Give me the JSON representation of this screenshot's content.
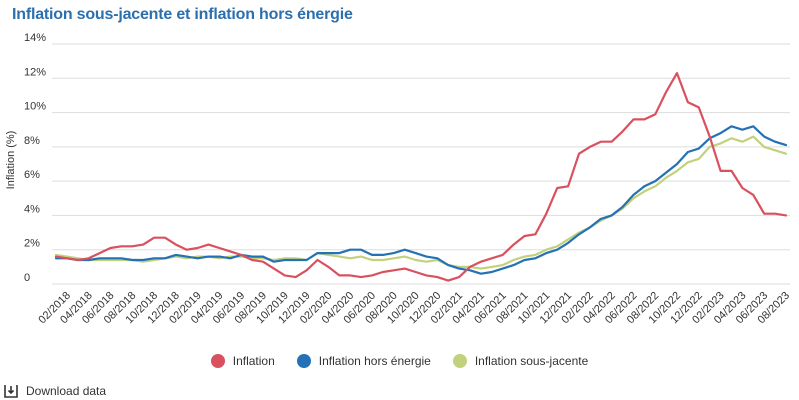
{
  "title": "Inflation sous-jacente et inflation hors énergie",
  "download_label": "Download data",
  "download_icon": "download-icon",
  "colors": {
    "inflation": "#d9515e",
    "hors_energie": "#2471b5",
    "sous_jacente": "#c2d17c",
    "grid": "#dddddd"
  },
  "chart_data": {
    "type": "line",
    "title": "Inflation sous-jacente et inflation hors énergie",
    "ylabel": "Inflation (%)",
    "ylim": [
      0,
      14
    ],
    "yticks": [
      0,
      2,
      4,
      6,
      8,
      10,
      12,
      14
    ],
    "ytick_labels": [
      "0",
      "2%",
      "4%",
      "6%",
      "8%",
      "10%",
      "12%",
      "14%"
    ],
    "grid": true,
    "legend_position": "bottom",
    "xtick_labels": [
      "02/2018",
      "04/2018",
      "06/2018",
      "08/2018",
      "10/2018",
      "12/2018",
      "02/2019",
      "04/2019",
      "06/2019",
      "08/2019",
      "10/2019",
      "12/2019",
      "02/2020",
      "04/2020",
      "06/2020",
      "08/2020",
      "10/2020",
      "12/2020",
      "02/2021",
      "04/2021",
      "06/2021",
      "08/2021",
      "10/2021",
      "12/2021",
      "02/2022",
      "04/2022",
      "06/2022",
      "08/2022",
      "10/2022",
      "12/2022",
      "02/2023",
      "04/2023",
      "06/2023",
      "08/2023"
    ],
    "x_start": "01/2018",
    "series": [
      {
        "name": "Inflation",
        "color": "#d9515e",
        "values": [
          1.6,
          1.5,
          1.4,
          1.5,
          1.8,
          2.1,
          2.2,
          2.2,
          2.3,
          2.7,
          2.7,
          2.3,
          2.0,
          2.1,
          2.3,
          2.1,
          1.9,
          1.7,
          1.4,
          1.3,
          0.9,
          0.5,
          0.4,
          0.8,
          1.4,
          1.0,
          0.5,
          0.5,
          0.4,
          0.5,
          0.7,
          0.8,
          0.9,
          0.7,
          0.5,
          0.4,
          0.2,
          0.4,
          1.0,
          1.3,
          1.5,
          1.7,
          2.3,
          2.8,
          2.9,
          4.1,
          5.6,
          5.7,
          7.6,
          8.0,
          8.3,
          8.3,
          8.9,
          9.6,
          9.6,
          9.9,
          11.2,
          12.3,
          10.6,
          10.3,
          8.6,
          6.6,
          6.6,
          5.6,
          5.2,
          4.1,
          4.1,
          4.0
        ]
      },
      {
        "name": "Inflation hors énergie",
        "color": "#2471b5",
        "values": [
          1.5,
          1.5,
          1.4,
          1.4,
          1.5,
          1.5,
          1.5,
          1.4,
          1.4,
          1.5,
          1.5,
          1.7,
          1.6,
          1.5,
          1.6,
          1.6,
          1.5,
          1.7,
          1.6,
          1.6,
          1.3,
          1.4,
          1.4,
          1.4,
          1.8,
          1.8,
          1.8,
          2.0,
          2.0,
          1.7,
          1.7,
          1.8,
          2.0,
          1.8,
          1.6,
          1.5,
          1.1,
          0.9,
          0.8,
          0.6,
          0.7,
          0.9,
          1.1,
          1.4,
          1.5,
          1.8,
          2.0,
          2.4,
          2.9,
          3.3,
          3.8,
          4.0,
          4.5,
          5.2,
          5.7,
          6.0,
          6.5,
          7.0,
          7.7,
          7.9,
          8.5,
          8.8,
          9.2,
          9.0,
          9.2,
          8.6,
          8.3,
          8.1
        ]
      },
      {
        "name": "Inflation sous-jacente",
        "color": "#c2d17c",
        "values": [
          1.7,
          1.6,
          1.5,
          1.4,
          1.4,
          1.4,
          1.4,
          1.4,
          1.3,
          1.4,
          1.5,
          1.6,
          1.5,
          1.6,
          1.6,
          1.5,
          1.6,
          1.6,
          1.5,
          1.5,
          1.4,
          1.5,
          1.5,
          1.4,
          1.8,
          1.7,
          1.6,
          1.5,
          1.6,
          1.4,
          1.4,
          1.5,
          1.6,
          1.4,
          1.3,
          1.4,
          1.1,
          1.0,
          1.0,
          0.9,
          1.0,
          1.1,
          1.4,
          1.6,
          1.7,
          2.0,
          2.2,
          2.6,
          3.0,
          3.3,
          3.7,
          4.0,
          4.4,
          5.0,
          5.4,
          5.7,
          6.2,
          6.6,
          7.1,
          7.3,
          8.0,
          8.2,
          8.5,
          8.3,
          8.6,
          8.0,
          7.8,
          7.6
        ]
      }
    ]
  }
}
